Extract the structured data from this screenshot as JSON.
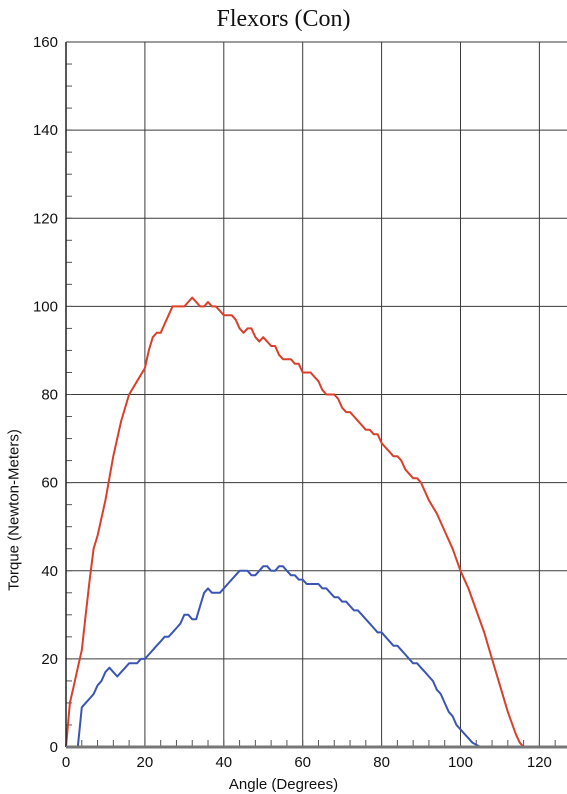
{
  "chart_data": {
    "type": "line",
    "title": "Flexors (Con)",
    "xlabel": "Angle (Degrees)",
    "ylabel": "Torque (Newton-Meters)",
    "xlim": [
      0,
      127
    ],
    "ylim": [
      0,
      160
    ],
    "xticks": [
      0,
      20,
      40,
      60,
      80,
      100,
      120
    ],
    "yticks": [
      0,
      20,
      40,
      60,
      80,
      100,
      120,
      140,
      160
    ],
    "grid": true,
    "series": [
      {
        "color": "#d9402b",
        "x": [
          0,
          1,
          2,
          3,
          4,
          5,
          6,
          7,
          8,
          10,
          12,
          14,
          16,
          18,
          20,
          21,
          22,
          23,
          24,
          25,
          26,
          27,
          28,
          29,
          30,
          31,
          32,
          33,
          34,
          35,
          36,
          37,
          38,
          39,
          40,
          41,
          42,
          43,
          44,
          45,
          46,
          47,
          48,
          49,
          50,
          51,
          52,
          53,
          54,
          55,
          56,
          57,
          58,
          59,
          60,
          61,
          62,
          63,
          64,
          65,
          66,
          67,
          68,
          69,
          70,
          71,
          72,
          73,
          74,
          75,
          76,
          77,
          78,
          79,
          80,
          81,
          82,
          83,
          84,
          85,
          86,
          87,
          88,
          89,
          90,
          92,
          94,
          96,
          98,
          100,
          102,
          104,
          106,
          108,
          110,
          112,
          114,
          115,
          116,
          117,
          120
        ],
        "values": [
          0,
          10,
          14,
          18,
          22,
          30,
          38,
          45,
          48,
          56,
          66,
          74,
          80,
          83,
          86,
          90,
          93,
          94,
          94,
          96,
          98,
          100,
          100,
          100,
          100,
          101,
          102,
          101,
          100,
          100,
          101,
          100,
          100,
          99,
          98,
          98,
          98,
          97,
          95,
          94,
          95,
          95,
          93,
          92,
          93,
          92,
          91,
          91,
          89,
          88,
          88,
          88,
          87,
          87,
          85,
          85,
          85,
          84,
          83,
          81,
          80,
          80,
          80,
          79,
          77,
          76,
          76,
          75,
          74,
          73,
          72,
          72,
          71,
          71,
          69,
          68,
          67,
          66,
          66,
          65,
          63,
          62,
          61,
          61,
          60,
          56,
          53,
          49,
          45,
          40,
          36,
          31,
          26,
          20,
          14,
          8,
          3,
          1,
          0,
          0,
          0
        ]
      },
      {
        "color": "#3a55b4",
        "x": [
          3,
          4,
          5,
          6,
          7,
          8,
          9,
          10,
          11,
          12,
          13,
          14,
          15,
          16,
          17,
          18,
          19,
          20,
          21,
          22,
          23,
          24,
          25,
          26,
          27,
          28,
          29,
          30,
          31,
          32,
          33,
          34,
          35,
          36,
          37,
          38,
          39,
          40,
          41,
          42,
          43,
          44,
          45,
          46,
          47,
          48,
          49,
          50,
          51,
          52,
          53,
          54,
          55,
          56,
          57,
          58,
          59,
          60,
          61,
          62,
          63,
          64,
          65,
          66,
          67,
          68,
          69,
          70,
          71,
          72,
          73,
          74,
          75,
          76,
          77,
          78,
          79,
          80,
          81,
          82,
          83,
          84,
          85,
          86,
          87,
          88,
          89,
          90,
          91,
          92,
          93,
          94,
          95,
          96,
          97,
          98,
          99,
          100,
          101,
          102,
          103,
          104,
          105,
          106,
          107,
          110,
          112,
          115,
          120
        ],
        "values": [
          0,
          9,
          10,
          11,
          12,
          14,
          15,
          17,
          18,
          17,
          16,
          17,
          18,
          19,
          19,
          19,
          20,
          20,
          21,
          22,
          23,
          24,
          25,
          25,
          26,
          27,
          28,
          30,
          30,
          29,
          29,
          32,
          35,
          36,
          35,
          35,
          35,
          36,
          37,
          38,
          39,
          40,
          40,
          40,
          39,
          39,
          40,
          41,
          41,
          40,
          40,
          41,
          41,
          40,
          39,
          39,
          38,
          38,
          37,
          37,
          37,
          37,
          36,
          36,
          35,
          34,
          34,
          33,
          33,
          32,
          31,
          31,
          30,
          29,
          28,
          27,
          26,
          26,
          25,
          24,
          23,
          23,
          22,
          21,
          20,
          19,
          19,
          18,
          17,
          16,
          15,
          13,
          12,
          10,
          8,
          7,
          5,
          4,
          3,
          2,
          1,
          0.5,
          0,
          0,
          0,
          0,
          0,
          0,
          0
        ]
      }
    ]
  }
}
